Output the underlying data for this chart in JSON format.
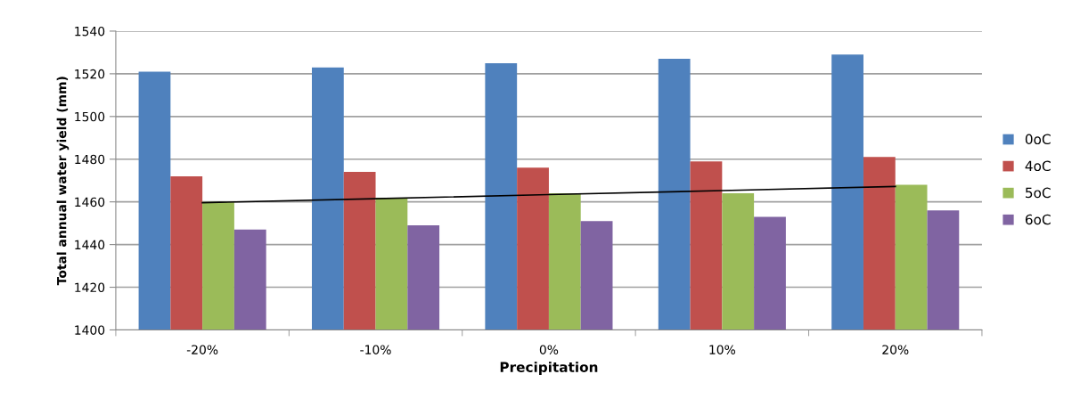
{
  "chart_data": {
    "type": "bar",
    "xlabel": "Precipitation",
    "ylabel": "Total annual water yield (mm)",
    "categories": [
      "-20%",
      "-10%",
      "0%",
      "10%",
      "20%"
    ],
    "series": [
      {
        "name": "0oC",
        "color": "#4f81bd",
        "values": [
          1521,
          1523,
          1525,
          1527,
          1529
        ]
      },
      {
        "name": "4oC",
        "color": "#c0504d",
        "values": [
          1472,
          1474,
          1476,
          1479,
          1481
        ]
      },
      {
        "name": "5oC",
        "color": "#9bbb59",
        "values": [
          1460,
          1462,
          1464,
          1464,
          1468
        ]
      },
      {
        "name": "6oC",
        "color": "#8064a2",
        "values": [
          1447,
          1449,
          1451,
          1453,
          1456
        ]
      },
      {
        "type": "line",
        "color": "#000000",
        "values": [
          1459.6,
          1461.5,
          1463.4,
          1465.3,
          1467.2
        ]
      }
    ],
    "ylim": [
      1400,
      1540
    ],
    "yticks": [
      1400,
      1420,
      1440,
      1460,
      1480,
      1500,
      1520,
      1540
    ],
    "grid": "y",
    "legend": "right"
  }
}
